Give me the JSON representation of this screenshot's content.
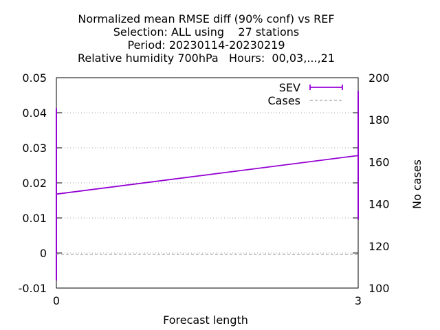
{
  "chart_data": {
    "type": "line",
    "title_lines": [
      "Normalized mean RMSE diff (90% conf) vs REF",
      "Selection: ALL using    27 stations",
      "Period: 20230114-20230219",
      "Relative humidity 700hPa   Hours:  00,03,...,21"
    ],
    "xlabel": "Forecast length",
    "ylabel": "",
    "y2label": "No cases",
    "x_ticks": [
      0,
      3
    ],
    "xlim": [
      0,
      3
    ],
    "ylim": [
      -0.01,
      0.05
    ],
    "y_ticks": [
      "-0.01",
      "0",
      "0.01",
      "0.02",
      "0.03",
      "0.04",
      "0.05"
    ],
    "y2lim": [
      100,
      200
    ],
    "y2_ticks": [
      "100",
      "120",
      "140",
      "160",
      "180",
      "200"
    ],
    "grid": "horizontal dotted",
    "legend_position": "top-right",
    "series": [
      {
        "name": "SEV",
        "axis": "y",
        "color": "#9400d3",
        "x": [
          0,
          3
        ],
        "y": [
          0.0168,
          0.0278
        ],
        "err_low": [
          -0.0078,
          0.0095
        ],
        "err_high": [
          0.0413,
          0.0462
        ]
      },
      {
        "name": "Cases",
        "axis": "y2",
        "color": "#a0a0a0",
        "dashed": true,
        "x": [
          0,
          3
        ],
        "y": [
          116,
          116
        ]
      }
    ]
  }
}
